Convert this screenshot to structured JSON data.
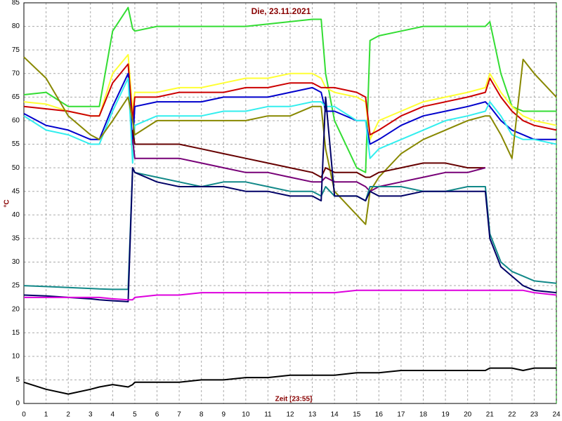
{
  "chart_data": {
    "type": "line",
    "title": "Die, 23.11.2021",
    "xlabel": "Zeit [23:55]",
    "ylabel": "°C",
    "xlim": [
      0,
      24
    ],
    "ylim": [
      0,
      85
    ],
    "xticks": [
      0,
      1,
      2,
      3,
      4,
      5,
      6,
      7,
      8,
      9,
      10,
      11,
      12,
      13,
      14,
      15,
      16,
      17,
      18,
      19,
      20,
      21,
      22,
      23,
      24
    ],
    "yticks": [
      0,
      5,
      10,
      15,
      20,
      25,
      30,
      35,
      40,
      45,
      50,
      55,
      60,
      65,
      70,
      75,
      80,
      85
    ],
    "grid": true,
    "x": [
      0,
      1,
      2,
      3,
      3.4,
      4,
      4.7,
      4.9,
      5,
      6,
      7,
      8,
      9,
      10,
      11,
      12,
      13,
      13.4,
      13.6,
      14,
      15,
      15.4,
      15.6,
      16,
      17,
      18,
      19,
      20,
      20.8,
      21,
      21.5,
      22,
      22.5,
      23,
      24
    ],
    "series": [
      {
        "color": "#33dd33",
        "values": [
          65.5,
          66,
          63,
          63,
          63,
          79,
          84,
          79.5,
          79,
          80,
          80,
          80,
          80,
          80,
          80.5,
          81,
          81.5,
          81.5,
          70,
          60,
          50,
          49,
          77,
          78,
          79,
          80,
          80,
          80,
          80,
          81,
          70,
          63,
          62,
          62,
          62
        ]
      },
      {
        "color": "#ffff33",
        "values": [
          64,
          63.5,
          62,
          61,
          61,
          70,
          74,
          62,
          66,
          66,
          67,
          67,
          68,
          69,
          69,
          70,
          70,
          69,
          67,
          66,
          65,
          64,
          56,
          60,
          62,
          64,
          65,
          66,
          67,
          70,
          66,
          63,
          61,
          60,
          59
        ]
      },
      {
        "color": "#cc0000",
        "values": [
          63,
          62.5,
          62,
          61,
          61,
          68,
          72,
          60,
          65,
          65,
          66,
          66,
          66,
          67,
          67,
          68,
          68,
          67,
          67,
          67,
          66,
          65,
          57,
          58,
          61,
          63,
          64,
          65,
          66,
          69,
          65,
          62,
          60,
          59,
          58
        ]
      },
      {
        "color": "#0000cc",
        "values": [
          61.5,
          59,
          58,
          56,
          56,
          63,
          70,
          55,
          63,
          64,
          64,
          64,
          65,
          65,
          65,
          66,
          67,
          66,
          62,
          62,
          60,
          60,
          55,
          56,
          59,
          61,
          62,
          63,
          64,
          63,
          60,
          58,
          57,
          56,
          56
        ]
      },
      {
        "color": "#33eeee",
        "values": [
          61,
          58,
          57,
          55,
          55,
          62,
          69,
          51,
          59,
          61,
          61,
          61,
          62,
          62,
          63,
          63,
          64,
          64,
          63,
          63,
          60,
          60,
          52,
          54,
          56,
          58,
          60,
          61,
          62,
          64,
          61,
          57,
          56,
          56,
          55
        ]
      },
      {
        "color": "#888800",
        "values": [
          73.5,
          69,
          61,
          57,
          56,
          60,
          65,
          60,
          57,
          60,
          60,
          60,
          60,
          60,
          61,
          61,
          63,
          63,
          54,
          45,
          40,
          38,
          45,
          48,
          53,
          56,
          58,
          60,
          61,
          61,
          57,
          52,
          73,
          70,
          65
        ]
      },
      {
        "color": "#660000",
        "values": [
          null,
          null,
          null,
          null,
          null,
          null,
          null,
          58,
          55,
          55,
          55,
          54,
          53,
          52,
          51,
          50,
          49,
          48,
          50,
          49,
          49,
          48,
          48,
          49,
          50,
          51,
          51,
          50,
          50,
          null,
          null,
          null,
          null,
          null,
          null
        ]
      },
      {
        "color": "#770077",
        "values": [
          null,
          null,
          null,
          null,
          null,
          null,
          null,
          56,
          52,
          52,
          52,
          51,
          50,
          49,
          49,
          48,
          47,
          47,
          48,
          47,
          47,
          46,
          45,
          46,
          47,
          48,
          49,
          49,
          50,
          null,
          null,
          null,
          null,
          null,
          null
        ]
      },
      {
        "color": "#118888",
        "values": [
          25,
          24.8,
          24.6,
          24.4,
          24.3,
          24.2,
          24.2,
          50,
          49,
          48,
          47,
          46,
          47,
          47,
          46,
          45,
          45,
          44,
          46,
          44,
          44,
          43,
          46,
          46,
          46,
          45,
          45,
          46,
          46,
          36,
          30,
          28,
          27,
          26,
          25.5
        ]
      },
      {
        "color": "#000066",
        "values": [
          23,
          22.8,
          22.5,
          22.2,
          22,
          21.8,
          21.6,
          50,
          49,
          47,
          46,
          46,
          46,
          45,
          45,
          44,
          44,
          43,
          65,
          44,
          44,
          43,
          45,
          44,
          44,
          45,
          45,
          45,
          45,
          35,
          29,
          27,
          25,
          24,
          23.5
        ]
      },
      {
        "color": "#dd00dd",
        "values": [
          22.5,
          22.5,
          22.5,
          22.5,
          22.5,
          22.2,
          22,
          22,
          22.5,
          23,
          23,
          23.5,
          23.5,
          23.5,
          23.5,
          23.5,
          23.5,
          23.5,
          23.5,
          23.5,
          24,
          24,
          24,
          24,
          24,
          24,
          24,
          24,
          24,
          24,
          24,
          24,
          24,
          23.5,
          23
        ]
      },
      {
        "color": "#000000",
        "values": [
          4.5,
          3,
          2,
          3,
          3.5,
          4,
          3.5,
          4,
          4.5,
          4.5,
          4.5,
          5,
          5,
          5.5,
          5.5,
          6,
          6,
          6,
          6,
          6,
          6.5,
          6.5,
          6.5,
          6.5,
          7,
          7,
          7,
          7,
          7,
          7.5,
          7.5,
          7.5,
          7,
          7.5,
          7.5
        ]
      }
    ]
  }
}
